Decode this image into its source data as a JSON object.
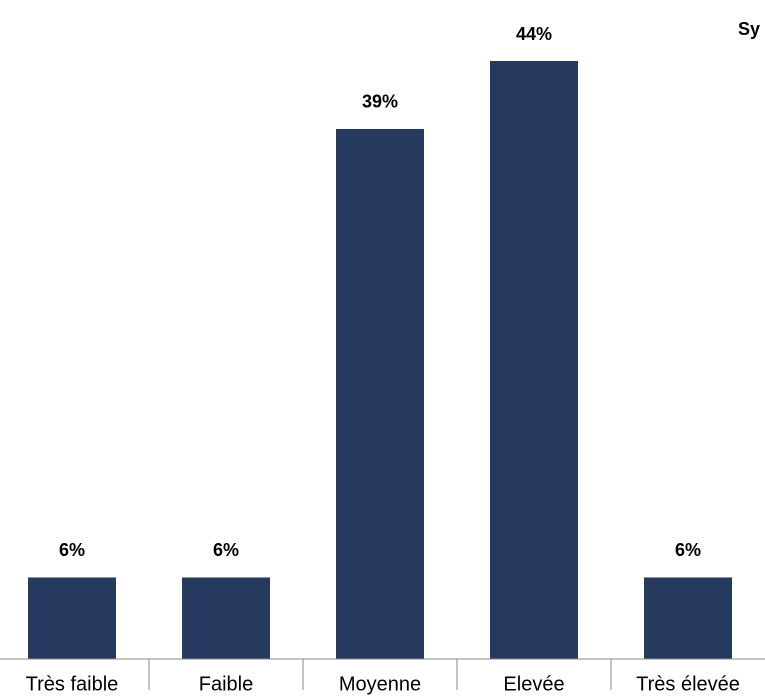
{
  "chart_data": {
    "type": "bar",
    "title": "Sy",
    "categories": [
      "Très faible",
      "Faible",
      "Moyenne",
      "Elevée",
      "Très élevée"
    ],
    "values": [
      6,
      6,
      39,
      44,
      6
    ],
    "value_labels": [
      "6%",
      "6%",
      "39%",
      "44%",
      "6%"
    ],
    "color": "#253a5e"
  }
}
